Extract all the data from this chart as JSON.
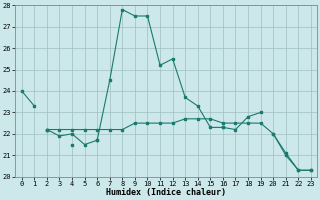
{
  "xlabel": "Humidex (Indice chaleur)",
  "x": [
    0,
    1,
    2,
    3,
    4,
    5,
    6,
    7,
    8,
    9,
    10,
    11,
    12,
    13,
    14,
    15,
    16,
    17,
    18,
    19,
    20,
    21,
    22,
    23
  ],
  "series": [
    [
      24.0,
      23.3,
      null,
      null,
      null,
      null,
      null,
      null,
      null,
      null,
      null,
      null,
      null,
      null,
      null,
      null,
      null,
      null,
      null,
      null,
      null,
      null,
      null,
      null
    ],
    [
      null,
      null,
      22.2,
      21.9,
      22.0,
      21.5,
      21.7,
      24.5,
      27.8,
      27.5,
      27.5,
      25.2,
      25.5,
      23.7,
      23.3,
      22.3,
      22.3,
      null,
      null,
      null,
      null,
      null,
      null,
      null
    ],
    [
      null,
      null,
      22.2,
      null,
      21.5,
      null,
      21.7,
      null,
      null,
      null,
      null,
      null,
      null,
      null,
      null,
      null,
      null,
      null,
      null,
      null,
      null,
      null,
      null,
      null
    ],
    [
      null,
      null,
      22.2,
      22.2,
      22.2,
      22.2,
      22.2,
      22.2,
      22.2,
      22.5,
      22.5,
      22.5,
      22.5,
      22.7,
      22.7,
      22.7,
      22.5,
      22.5,
      22.5,
      22.5,
      22.0,
      21.0,
      20.3,
      20.3
    ],
    [
      null,
      null,
      null,
      null,
      null,
      null,
      null,
      null,
      null,
      null,
      null,
      null,
      null,
      null,
      null,
      null,
      22.3,
      22.2,
      22.8,
      23.0,
      null,
      null,
      null,
      null
    ],
    [
      null,
      null,
      null,
      null,
      null,
      null,
      null,
      null,
      null,
      null,
      null,
      null,
      null,
      null,
      null,
      null,
      null,
      null,
      null,
      null,
      22.0,
      21.1,
      20.3,
      20.3
    ]
  ],
  "color": "#1a7a6e",
  "bg_color": "#cce8ea",
  "grid_color": "#9dbfbf",
  "ylim": [
    20,
    28
  ],
  "yticks": [
    20,
    21,
    22,
    23,
    24,
    25,
    26,
    27,
    28
  ],
  "xticks": [
    0,
    1,
    2,
    3,
    4,
    5,
    6,
    7,
    8,
    9,
    10,
    11,
    12,
    13,
    14,
    15,
    16,
    17,
    18,
    19,
    20,
    21,
    22,
    23
  ],
  "tick_fontsize": 5,
  "xlabel_fontsize": 6
}
